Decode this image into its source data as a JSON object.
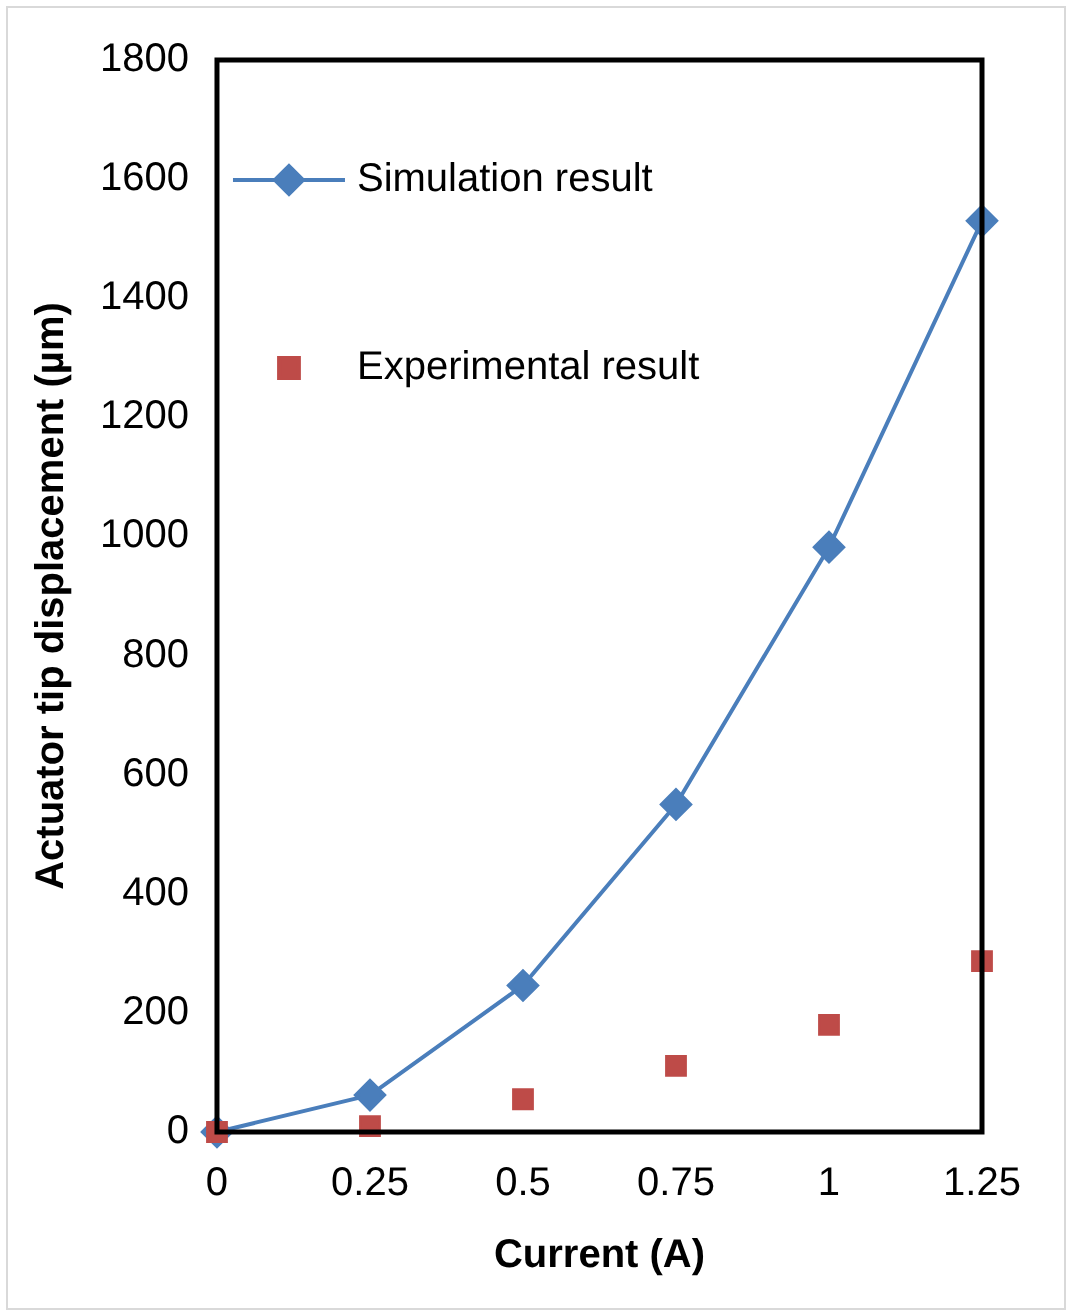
{
  "chart_data": {
    "type": "scatter",
    "xlabel": "Current (A)",
    "ylabel": "Actuator tip displacement (µm)",
    "x": [
      0,
      0.25,
      0.5,
      0.75,
      1,
      1.25
    ],
    "xlim": [
      0,
      1.25
    ],
    "xticks": [
      0,
      0.25,
      0.5,
      0.75,
      1,
      1.25
    ],
    "ylim": [
      0,
      1800
    ],
    "yticks": [
      0,
      200,
      400,
      600,
      800,
      1000,
      1200,
      1400,
      1600,
      1800
    ],
    "grid": false,
    "legend": "top left",
    "series": [
      {
        "name": "Simulation result",
        "type": "line",
        "color": "#4a7ebb",
        "marker": "diamond",
        "line_style": "solid",
        "values": [
          0,
          62,
          246,
          550,
          982,
          1530
        ]
      },
      {
        "name": "Experimental result",
        "type": "scatter",
        "color": "#be4b48",
        "marker": "square",
        "values": [
          0,
          10,
          55,
          111,
          180,
          287
        ]
      }
    ]
  }
}
